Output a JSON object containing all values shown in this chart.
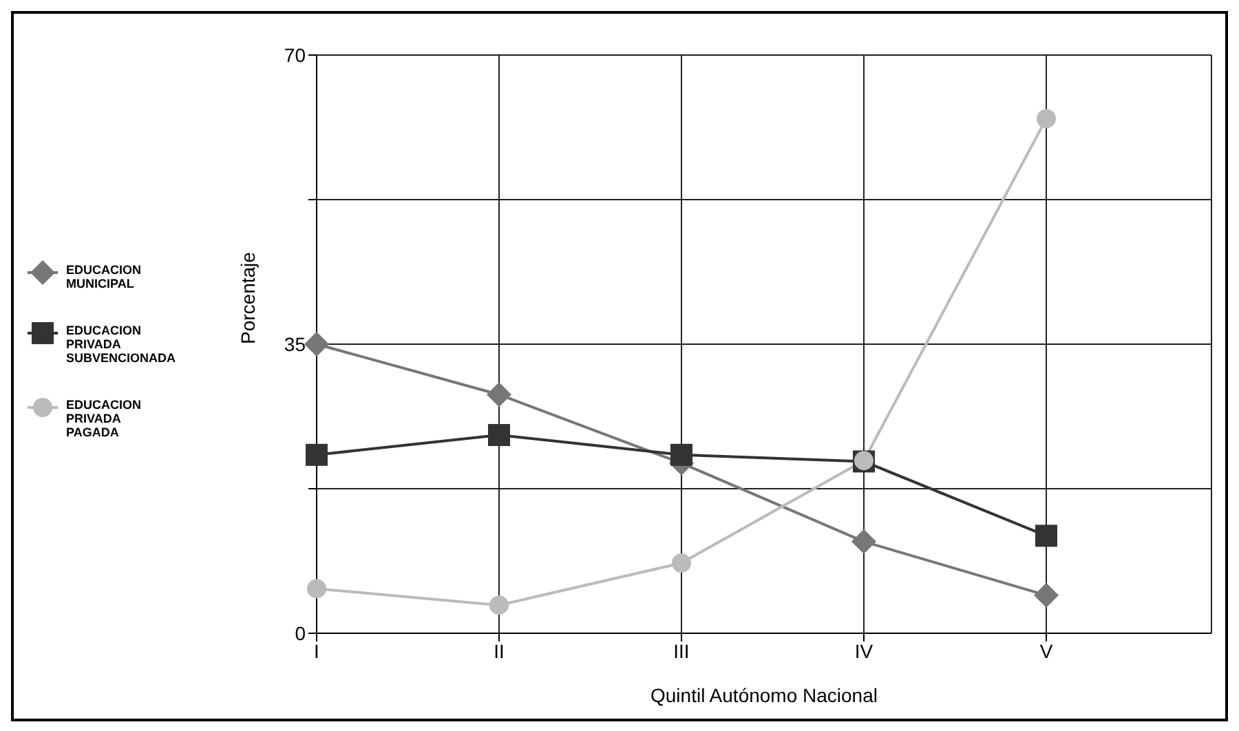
{
  "chart_data": {
    "type": "line",
    "xlabel": "Quintil Autónomo Nacional",
    "ylabel": "Porcentaje",
    "categories": [
      "I",
      "II",
      "III",
      "IV",
      "V"
    ],
    "series": [
      {
        "name": "EDUCACION MUNICIPAL",
        "color": "#777777",
        "marker": "diamond",
        "values": [
          35,
          28.9,
          20.6,
          11.1,
          4.6
        ]
      },
      {
        "name": "EDUCACION PRIVADA SUBVENCIONADA",
        "color": "#333333",
        "marker": "square",
        "values": [
          21.6,
          24,
          21.6,
          20.8,
          11.8
        ]
      },
      {
        "name": "EDUCACION PRIVADA PAGADA",
        "color": "#bbbbbb",
        "marker": "circle",
        "values": [
          5.4,
          3.4,
          8.5,
          20.9,
          62.3
        ]
      }
    ],
    "ylim": [
      0,
      70
    ],
    "yticks": [
      0,
      {
        "value": 17.5,
        "label": null
      },
      35,
      {
        "value": 52.5,
        "label": null
      },
      70
    ],
    "grid": true,
    "legend": "left",
    "line_style": "solid"
  }
}
